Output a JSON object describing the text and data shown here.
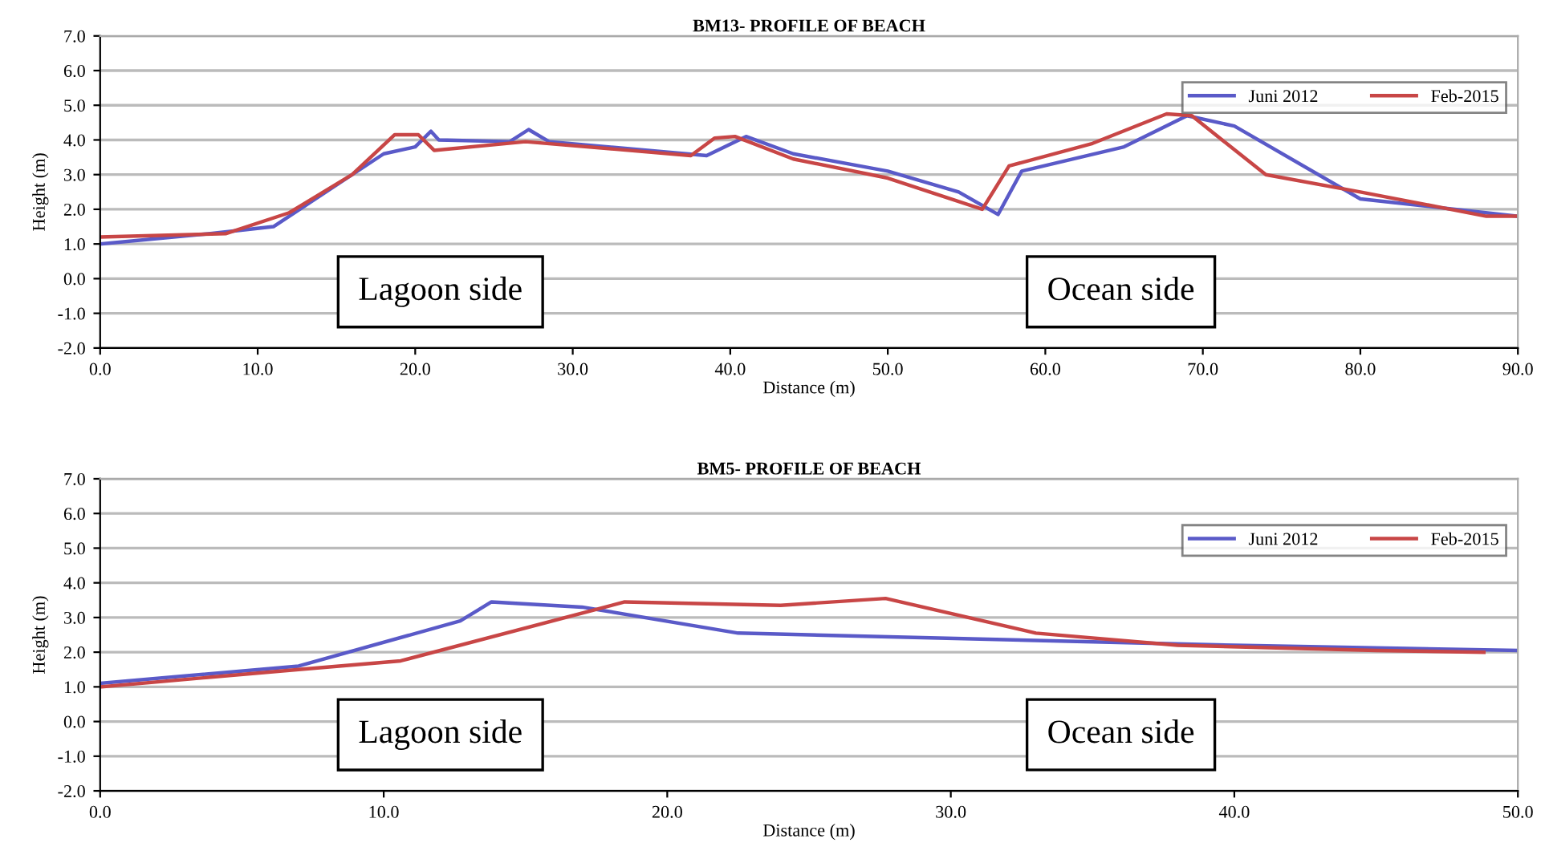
{
  "chart_data": [
    {
      "type": "line",
      "title": "BM13- PROFILE OF BEACH",
      "xlabel": "Distance (m)",
      "ylabel": "Height (m)",
      "xlim": [
        0,
        90
      ],
      "xticks": [
        {
          "value": 0,
          "label": "0.0"
        },
        {
          "value": 10,
          "label": "10.0"
        },
        {
          "value": 20,
          "label": "20.0"
        },
        {
          "value": 30,
          "label": "30.0"
        },
        {
          "value": 40,
          "label": "40.0"
        },
        {
          "value": 50,
          "label": "50.0"
        },
        {
          "value": 60,
          "label": "60.0"
        },
        {
          "value": 70,
          "label": "70.0"
        },
        {
          "value": 80,
          "label": "80.0"
        },
        {
          "value": 90,
          "label": "90.0"
        }
      ],
      "ylim": [
        -2,
        7
      ],
      "yticks": [
        {
          "value": -2,
          "label": "-2.0"
        },
        {
          "value": -1,
          "label": "-1.0"
        },
        {
          "value": 0,
          "label": "0.0"
        },
        {
          "value": 1,
          "label": "1.0"
        },
        {
          "value": 2,
          "label": "2.0"
        },
        {
          "value": 3,
          "label": "3.0"
        },
        {
          "value": 4,
          "label": "4.0"
        },
        {
          "value": 5,
          "label": "5.0"
        },
        {
          "value": 6,
          "label": "6.0"
        },
        {
          "value": 7,
          "label": "7.0"
        }
      ],
      "grid": "y",
      "legend": "top right",
      "marker": "none",
      "line_style": "solid",
      "annotations": [
        "Lagoon side",
        "Ocean side"
      ],
      "series": [
        {
          "name": "Juni 2012",
          "color": "#5a5ac8",
          "x": [
            0,
            7,
            11,
            13,
            18,
            20,
            21,
            21.5,
            26,
            27.2,
            28.5,
            38.5,
            41,
            44,
            50,
            54.5,
            57,
            58.5,
            65,
            69,
            72,
            80,
            86,
            90
          ],
          "values": [
            1.0,
            1.3,
            1.5,
            2.1,
            3.6,
            3.8,
            4.25,
            4.0,
            3.95,
            4.3,
            3.95,
            3.55,
            4.1,
            3.6,
            3.1,
            2.5,
            1.85,
            3.1,
            3.8,
            4.7,
            4.4,
            2.3,
            2.0,
            1.8
          ]
        },
        {
          "name": "Feb-2015",
          "color": "#c84646",
          "x": [
            0,
            8,
            12,
            16,
            18.7,
            20.2,
            21.2,
            27,
            37.5,
            39,
            40.3,
            44,
            50,
            56,
            57.7,
            63,
            67.7,
            69.3,
            71.5,
            74,
            80,
            88,
            90
          ],
          "values": [
            1.2,
            1.3,
            1.9,
            3.0,
            4.15,
            4.15,
            3.7,
            3.95,
            3.55,
            4.05,
            4.1,
            3.45,
            2.9,
            2.0,
            3.25,
            3.9,
            4.75,
            4.7,
            3.9,
            3.0,
            2.5,
            1.8,
            1.8
          ]
        }
      ]
    },
    {
      "type": "line",
      "title": "BM5- PROFILE OF BEACH",
      "xlabel": "Distance (m)",
      "ylabel": "Height (m)",
      "xlim": [
        0,
        50
      ],
      "xticks": [
        {
          "value": 0,
          "label": "0.0"
        },
        {
          "value": 10,
          "label": "10.0"
        },
        {
          "value": 20,
          "label": "20.0"
        },
        {
          "value": 30,
          "label": "30.0"
        },
        {
          "value": 40,
          "label": "40.0"
        },
        {
          "value": 50,
          "label": "50.0"
        }
      ],
      "ylim": [
        -2,
        7
      ],
      "yticks": [
        {
          "value": -2,
          "label": "-2.0"
        },
        {
          "value": -1,
          "label": "-1.0"
        },
        {
          "value": 0,
          "label": "0.0"
        },
        {
          "value": 1,
          "label": "1.0"
        },
        {
          "value": 2,
          "label": "2.0"
        },
        {
          "value": 3,
          "label": "3.0"
        },
        {
          "value": 4,
          "label": "4.0"
        },
        {
          "value": 5,
          "label": "5.0"
        },
        {
          "value": 6,
          "label": "6.0"
        },
        {
          "value": 7,
          "label": "7.0"
        }
      ],
      "grid": "y",
      "legend": "top right",
      "marker": "none",
      "line_style": "solid",
      "annotations": [
        "Lagoon side",
        "Ocean side"
      ],
      "series": [
        {
          "name": "Juni 2012",
          "color": "#5a5ac8",
          "x": [
            0,
            7,
            12.7,
            13.8,
            17,
            22.5,
            40,
            50
          ],
          "values": [
            1.1,
            1.6,
            2.9,
            3.45,
            3.3,
            2.55,
            2.2,
            2.05
          ]
        },
        {
          "name": "Feb-2015",
          "color": "#c84646",
          "x": [
            0,
            7,
            10.6,
            18.5,
            24,
            27.7,
            33,
            38,
            45,
            48.8
          ],
          "values": [
            1.0,
            1.5,
            1.75,
            3.45,
            3.35,
            3.55,
            2.55,
            2.2,
            2.05,
            2.0
          ]
        }
      ]
    }
  ]
}
